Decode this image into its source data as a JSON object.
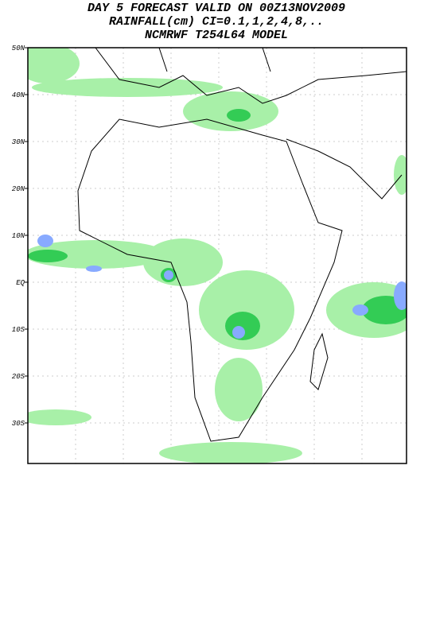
{
  "header": {
    "lines": [
      "DAY 5 FORECAST VALID ON 00Z13NOV2009",
      "RAINFALL(cm) CI=0.1,1,2,4,8,..",
      "NCMRWF T254L64 MODEL"
    ]
  },
  "map": {
    "lat_labels": [
      "50N",
      "40N",
      "30N",
      "20N",
      "10N",
      "EQ",
      "10S",
      "20S",
      "30S"
    ]
  }
}
